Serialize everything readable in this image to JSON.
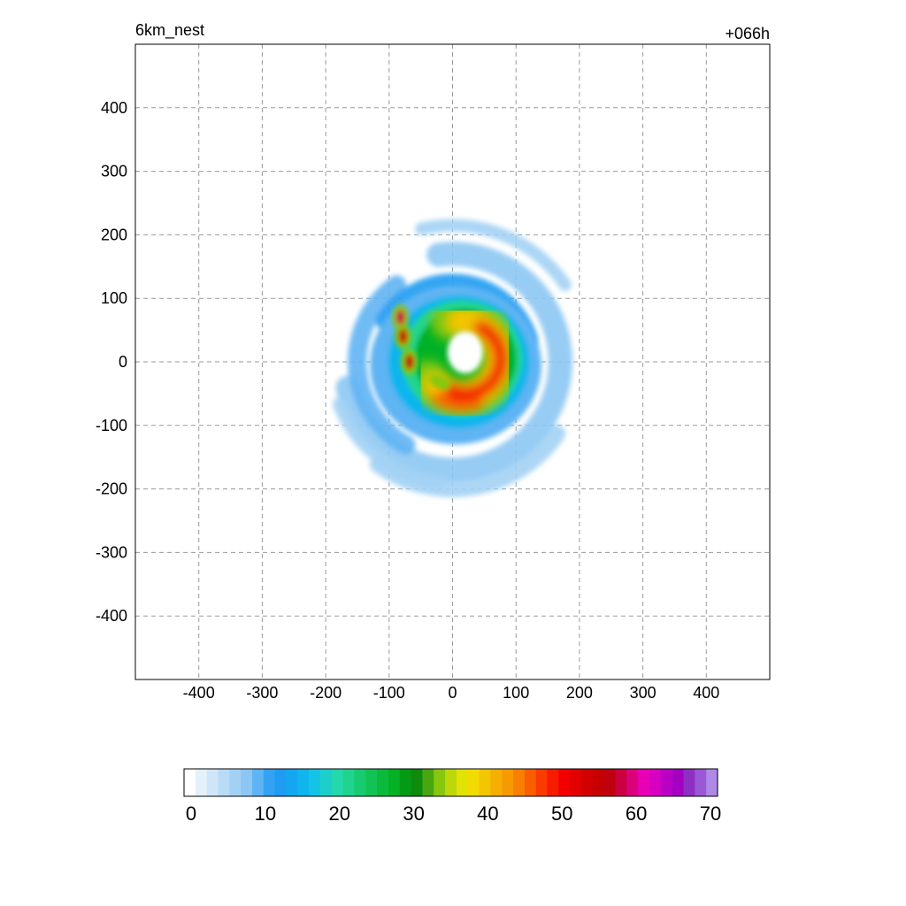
{
  "chart_data": {
    "type": "heatmap",
    "title_left": "6km_nest",
    "title_right": "+066h",
    "xlabel": "",
    "ylabel": "",
    "xlim": [
      -500,
      500
    ],
    "ylim": [
      -500,
      500
    ],
    "xticks": [
      -400,
      -300,
      -200,
      -100,
      0,
      100,
      200,
      300,
      400
    ],
    "yticks": [
      400,
      300,
      200,
      100,
      0,
      -100,
      -200,
      -300,
      -400
    ],
    "grid": true,
    "colorbar": {
      "min": 0,
      "max": 70,
      "tick_values": [
        0,
        10,
        20,
        30,
        40,
        50,
        60,
        70
      ],
      "colors": [
        "#ffffff",
        "#e4f1fb",
        "#cfe6f8",
        "#b9dcf6",
        "#a3d1f4",
        "#8cc7f3",
        "#5fb4f3",
        "#33a2f2",
        "#1f9bf2",
        "#14a7ef",
        "#11b5ed",
        "#14c4e6",
        "#1ccfcb",
        "#24d7ad",
        "#20d48d",
        "#18cb6f",
        "#12c254",
        "#0bba3b",
        "#05b125",
        "#049a15",
        "#0e8b0c",
        "#4aa610",
        "#86c70e",
        "#bcd80a",
        "#e1e206",
        "#f2dc00",
        "#f2c600",
        "#f4af00",
        "#f79a00",
        "#f87f00",
        "#f95e00",
        "#fa3a00",
        "#f71b00",
        "#f20000",
        "#e20000",
        "#d20000",
        "#c60000",
        "#bf000f",
        "#cb0040",
        "#db007c",
        "#e800b4",
        "#d600c1",
        "#bb00c5",
        "#a400c2",
        "#8e2fc4",
        "#9a58d6",
        "#b088e6"
      ]
    },
    "structures": [
      {
        "kind": "ring",
        "cx": 0,
        "cy": 0,
        "r": 95,
        "w": 90,
        "value": 22
      },
      {
        "kind": "core",
        "cx": 15,
        "cy": 5,
        "r": 60,
        "w": 55,
        "value": 45,
        "sector": "east-south"
      },
      {
        "kind": "band",
        "cx": 0,
        "cy": 0,
        "r": 170,
        "w": 40,
        "value": 8,
        "sector": "outer-spiral"
      },
      {
        "kind": "eye",
        "cx": 20,
        "cy": 15,
        "r": 28,
        "value": 0
      },
      {
        "kind": "cell",
        "cx": -82,
        "cy": 70,
        "value": 58
      },
      {
        "kind": "cell",
        "cx": -78,
        "cy": 40,
        "value": 55
      },
      {
        "kind": "cell",
        "cx": -68,
        "cy": 0,
        "value": 56
      }
    ]
  }
}
